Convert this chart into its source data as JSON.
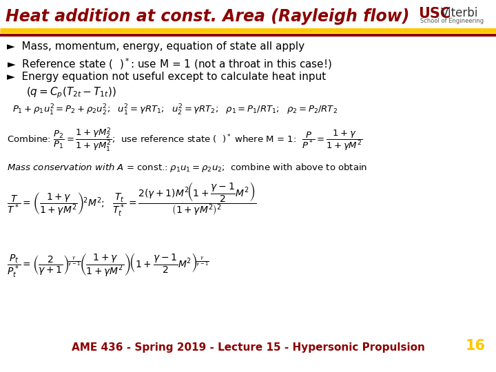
{
  "title": "Heat addition at const. Area (Rayleigh flow)",
  "title_color": "#8B0000",
  "title_fontsize": 17,
  "usc1_color": "#8B0000",
  "usc2_color": "#333333",
  "sub_color": "#555555",
  "bar_gold": "#FFC700",
  "bar_dark": "#8B0000",
  "background": "#FFFFFF",
  "footer": "AME 436 - Spring 2019 - Lecture 15 - Hypersonic Propulsion",
  "footer_color": "#8B0000",
  "page_num": "16",
  "page_num_color": "#FFC700",
  "footer_fontsize": 11
}
